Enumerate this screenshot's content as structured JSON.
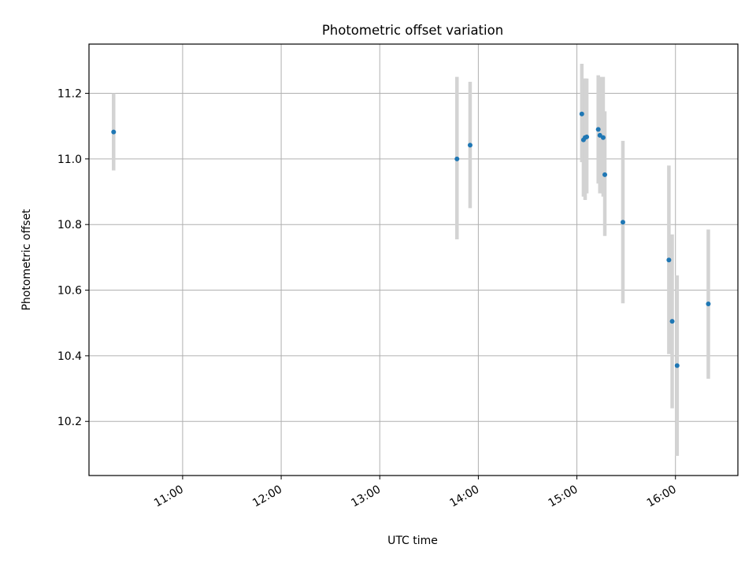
{
  "chart_data": {
    "type": "scatter",
    "title": "Photometric offset variation",
    "xlabel": "UTC time",
    "ylabel": "Photometric offset",
    "x_ticks": [
      "11:00",
      "12:00",
      "13:00",
      "14:00",
      "15:00",
      "16:00"
    ],
    "y_ticks": [
      "10.2",
      "10.4",
      "10.6",
      "10.8",
      "11.0",
      "11.2"
    ],
    "xlim": [
      "10:03",
      "16:38"
    ],
    "ylim": [
      10.035,
      11.35
    ],
    "grid": true,
    "marker_color": "#1f77b4",
    "errorbar_color": "#d3d3d3",
    "points": [
      {
        "time": "10:18",
        "offset": 11.082,
        "err_low": 10.965,
        "err_high": 11.2
      },
      {
        "time": "13:47",
        "offset": 11.0,
        "err_low": 10.755,
        "err_high": 11.25
      },
      {
        "time": "13:55",
        "offset": 11.042,
        "err_low": 10.85,
        "err_high": 11.235
      },
      {
        "time": "15:03",
        "offset": 11.137,
        "err_low": 10.99,
        "err_high": 11.29
      },
      {
        "time": "15:04",
        "offset": 11.058,
        "err_low": 10.885,
        "err_high": 11.245
      },
      {
        "time": "15:05",
        "offset": 11.065,
        "err_low": 10.875,
        "err_high": 11.245
      },
      {
        "time": "15:06",
        "offset": 11.067,
        "err_low": 10.895,
        "err_high": 11.245
      },
      {
        "time": "15:13",
        "offset": 11.09,
        "err_low": 10.925,
        "err_high": 11.255
      },
      {
        "time": "15:14",
        "offset": 11.072,
        "err_low": 10.895,
        "err_high": 11.25
      },
      {
        "time": "15:16",
        "offset": 11.065,
        "err_low": 10.885,
        "err_high": 11.25
      },
      {
        "time": "15:17",
        "offset": 10.952,
        "err_low": 10.765,
        "err_high": 11.145
      },
      {
        "time": "15:28",
        "offset": 10.807,
        "err_low": 10.56,
        "err_high": 11.055
      },
      {
        "time": "15:56",
        "offset": 10.692,
        "err_low": 10.405,
        "err_high": 10.98
      },
      {
        "time": "15:58",
        "offset": 10.505,
        "err_low": 10.24,
        "err_high": 10.77
      },
      {
        "time": "16:01",
        "offset": 10.37,
        "err_low": 10.095,
        "err_high": 10.645
      },
      {
        "time": "16:20",
        "offset": 10.558,
        "err_low": 10.33,
        "err_high": 10.785
      }
    ]
  }
}
